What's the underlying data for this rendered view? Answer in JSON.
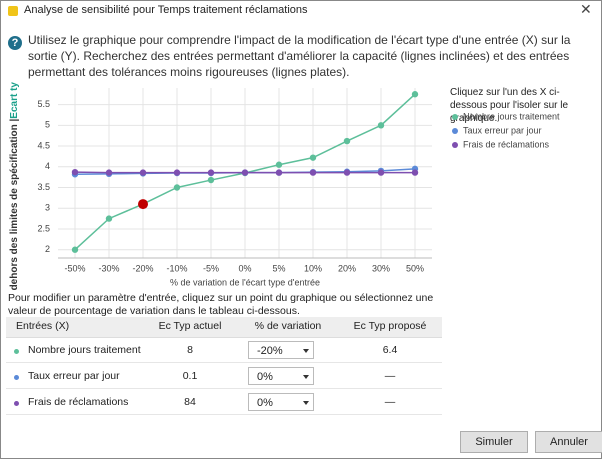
{
  "window_title": "Analyse de sensibilité pour Temps traitement réclamations",
  "intro": "Utilisez le graphique pour comprendre l'impact de la modification de l'écart type d'une entrée (X) sur la sortie (Y). Recherchez des entrées permettant d'améliorer la capacité (lignes inclinées) et des entrées permettant des tolérances moins rigoureuses (lignes plates).",
  "legend_hint": "Cliquez sur l'un des X ci-dessous pour l'isoler sur le graphique.",
  "chart_data": {
    "type": "line",
    "y_label": [
      "s en dehors des limites de spécification |",
      "Ecart ty"
    ],
    "x_label": "% de variation de l'écart type d'entrée",
    "categories": [
      "-50%",
      "-30%",
      "-20%",
      "-10%",
      "-5%",
      "0%",
      "5%",
      "10%",
      "20%",
      "30%",
      "50%"
    ],
    "series": [
      {
        "name": "Nombre jours traitement",
        "color": "#5dbf9a",
        "values": [
          2.0,
          2.75,
          3.1,
          3.5,
          3.68,
          3.85,
          4.05,
          4.22,
          4.62,
          5.0,
          5.75
        ]
      },
      {
        "name": "Taux erreur par jour",
        "color": "#5b8ad8",
        "values": [
          3.82,
          3.83,
          3.84,
          3.85,
          3.85,
          3.86,
          3.86,
          3.87,
          3.88,
          3.9,
          3.95
        ]
      },
      {
        "name": "Frais de réclamations",
        "color": "#7e4fb0",
        "values": [
          3.87,
          3.86,
          3.86,
          3.86,
          3.86,
          3.86,
          3.86,
          3.86,
          3.86,
          3.86,
          3.86
        ]
      }
    ],
    "highlight": {
      "series": 0,
      "index": 2,
      "color": "#c00000"
    },
    "ylim": [
      1.8,
      5.9
    ],
    "yticks": [
      2,
      2.5,
      3,
      3.5,
      4,
      4.5,
      5,
      5.5
    ],
    "grid": true
  },
  "instruction": "Pour modifier un paramètre d'entrée, cliquez sur un point du graphique ou sélectionnez une valeur de pourcentage de variation dans le tableau ci-dessous.",
  "table": {
    "headers": [
      "Entrées (X)",
      "Ec Typ actuel",
      "% de variation",
      "Ec Typ proposé"
    ],
    "rows": [
      [
        "Nombre jours traitement",
        "8",
        "-20%",
        "6.4"
      ],
      [
        "Taux erreur par jour",
        "0.1",
        "0%",
        "—"
      ],
      [
        "Frais de réclamations",
        "84",
        "0%",
        "—"
      ]
    ]
  },
  "buttons": [
    "Simuler",
    "Annuler"
  ]
}
